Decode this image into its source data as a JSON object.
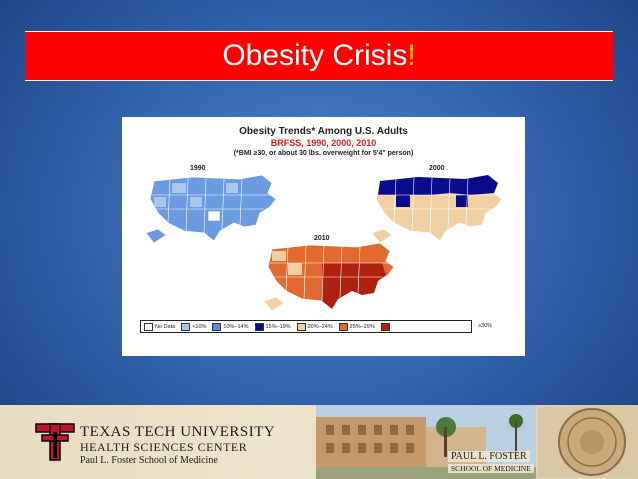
{
  "slide": {
    "title": "Obesity Crisis",
    "title_accent": "!"
  },
  "figure": {
    "title": "Obesity Trends* Among U.S. Adults",
    "subtitle": "BRFSS, 1990, 2000, 2010",
    "note": "(*BMI ≥30, or about 30 lbs. overweight for 5'4\" person)",
    "maps": [
      {
        "year": "1990",
        "color": "#6a9ae0"
      },
      {
        "year": "2000",
        "color": "#0a0a8c"
      },
      {
        "year": "2010",
        "color": "#c8401c"
      }
    ],
    "legend": [
      {
        "label": "No Data",
        "color": "#ffffff"
      },
      {
        "label": "<10%",
        "color": "#a8c8f0"
      },
      {
        "label": "10%–14%",
        "color": "#5b8ee0"
      },
      {
        "label": "15%–19%",
        "color": "#0a0a8c"
      },
      {
        "label": "20%–24%",
        "color": "#f0d0a0"
      },
      {
        "label": "25%–29%",
        "color": "#e06a30"
      },
      {
        "label": "≥30%",
        "color": "#b02010"
      }
    ]
  },
  "footer": {
    "university_line1": "TEXAS TECH UNIVERSITY",
    "university_line2": "HEALTH SCIENCES CENTER",
    "university_line3": "Paul L. Foster School of Medicine",
    "sign_line1": "PAUL L. FOSTER",
    "sign_line2": "SCHOOL OF MEDICINE"
  }
}
